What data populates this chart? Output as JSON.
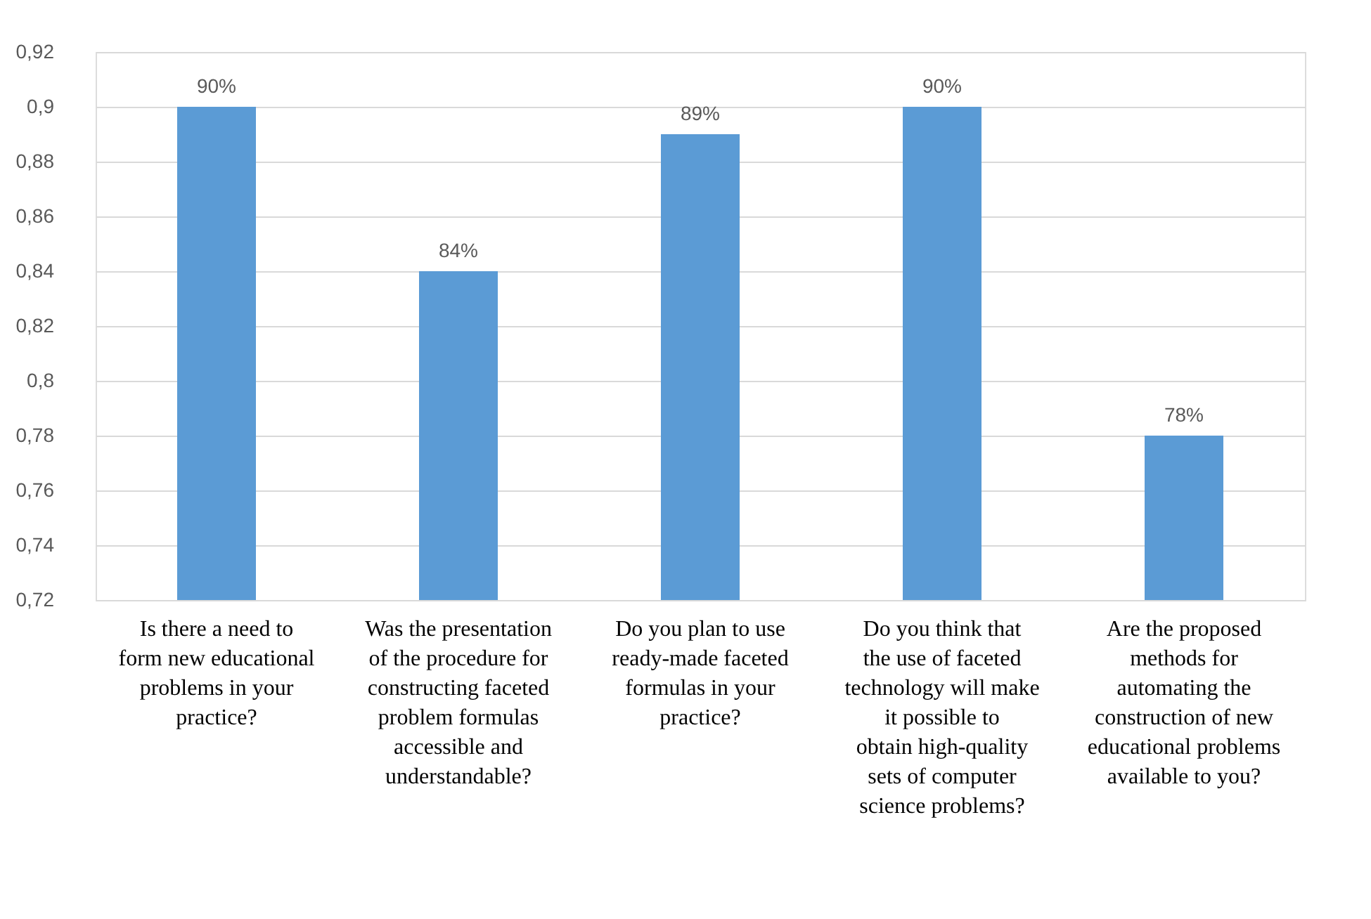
{
  "chart_data": {
    "type": "bar",
    "categories": [
      "Is there a need to form new educational problems in your practice?",
      "Was the presentation of the procedure for constructing faceted problem formulas accessible and understandable?",
      "Do you plan to use ready-made faceted formulas in your practice?",
      "Do you think that the use of faceted technology will make it possible to obtain high-quality sets of computer science problems?",
      "Are the proposed methods for automating the construction of new educational problems available to you?"
    ],
    "values": [
      0.9,
      0.84,
      0.89,
      0.9,
      0.78
    ],
    "value_labels": [
      "90%",
      "84%",
      "89%",
      "90%",
      "78%"
    ],
    "color": "#5b9bd5",
    "ylim": [
      0.72,
      0.92
    ],
    "yticks": [
      {
        "value": 0.72,
        "label": "0,72"
      },
      {
        "value": 0.74,
        "label": "0,74"
      },
      {
        "value": 0.76,
        "label": "0,76"
      },
      {
        "value": 0.78,
        "label": "0,78"
      },
      {
        "value": 0.8,
        "label": "0,8"
      },
      {
        "value": 0.82,
        "label": "0,82"
      },
      {
        "value": 0.84,
        "label": "0,84"
      },
      {
        "value": 0.86,
        "label": "0,86"
      },
      {
        "value": 0.88,
        "label": "0,88"
      },
      {
        "value": 0.9,
        "label": "0,9"
      },
      {
        "value": 0.92,
        "label": "0,92"
      }
    ],
    "grid": "y"
  }
}
